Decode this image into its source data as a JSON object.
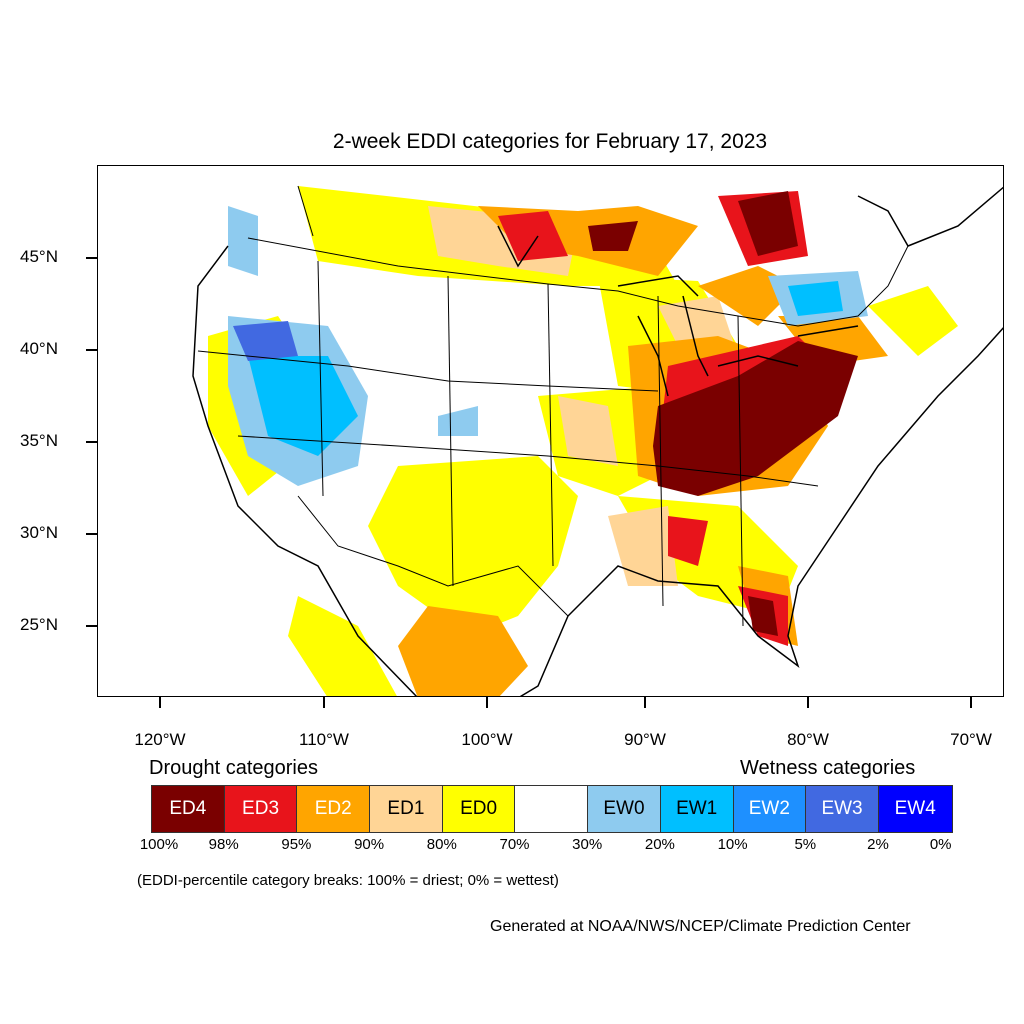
{
  "title": "2-week EDDI categories for February 17, 2023",
  "latitude_labels": [
    "45°N",
    "40°N",
    "35°N",
    "30°N",
    "25°N"
  ],
  "longitude_labels": [
    "120°W",
    "110°W",
    "100°W",
    "90°W",
    "80°W",
    "70°W"
  ],
  "legend": {
    "drought_heading": "Drought categories",
    "wetness_heading": "Wetness categories",
    "categories": [
      {
        "label": "ED4",
        "color": "#7a0000",
        "text_color": "#ffffff"
      },
      {
        "label": "ED3",
        "color": "#e8141b",
        "text_color": "#ffffff"
      },
      {
        "label": "ED2",
        "color": "#ffa500",
        "text_color": "#ffffff"
      },
      {
        "label": "ED1",
        "color": "#ffd596",
        "text_color": "#000000"
      },
      {
        "label": "ED0",
        "color": "#ffff00",
        "text_color": "#000000"
      },
      {
        "label": "",
        "color": "#ffffff",
        "text_color": "#000000"
      },
      {
        "label": "EW0",
        "color": "#8ecbef",
        "text_color": "#000000"
      },
      {
        "label": "EW1",
        "color": "#00bfff",
        "text_color": "#000000"
      },
      {
        "label": "EW2",
        "color": "#1e90ff",
        "text_color": "#ffffff"
      },
      {
        "label": "EW3",
        "color": "#4169e1",
        "text_color": "#ffffff"
      },
      {
        "label": "EW4",
        "color": "#0000ff",
        "text_color": "#ffffff"
      }
    ],
    "percentiles": [
      "100%",
      "98%",
      "95%",
      "90%",
      "80%",
      "70%",
      "30%",
      "20%",
      "10%",
      "5%",
      "2%",
      "0%"
    ]
  },
  "note": "(EDDI-percentile category breaks: 100% = driest; 0% = wettest)",
  "credit": "Generated at NOAA/NWS/NCEP/Climate Prediction Center"
}
